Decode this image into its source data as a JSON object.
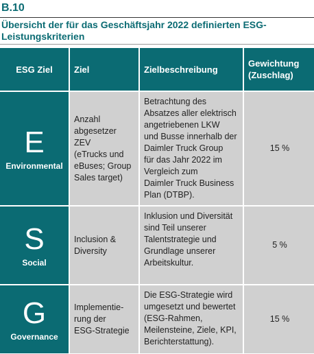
{
  "table_label": "B.10",
  "title": "Übersicht der für das Geschäftsjahr 2022 definierten ESG-Leistungskriterien",
  "headers": {
    "esg_goal": "ESG Ziel",
    "goal": "Ziel",
    "goal_description": "Zielbeschreibung",
    "weighting": "Gewichtung (Zuschlag)"
  },
  "rows": [
    {
      "letter": "E",
      "category": "Environmental",
      "goal": "Anzahl\nabgesetzer ZEV\n(eTrucks und\neBuses; Group\nSales target)",
      "description": "Betrachtung des\nAbsatzes aller elektrisch\nangetriebenen LKW\nund Busse innerhalb der\nDaimler Truck Group\nfür das Jahr 2022 im\nVergleich zum\nDaimler Truck Business\nPlan (DTBP).",
      "weight": "15 %"
    },
    {
      "letter": "S",
      "category": "Social",
      "goal": "Inclusion &\nDiversity",
      "description": "Inklusion und Diversität\nsind Teil unserer\nTalentstrategie und\nGrundlage unserer\nArbeitskultur.",
      "weight": "5 %"
    },
    {
      "letter": "G",
      "category": "Governance",
      "goal": "Implementie-\nrung der\nESG-Strategie",
      "description": "Die ESG-Strategie wird\numgesetzt und bewertet\n(ESG-Rahmen,\nMeilensteine, Ziele, KPI,\nBerichterstattung).",
      "weight": "15 %"
    }
  ],
  "colors": {
    "accent": "#0b6b73",
    "cell_bg": "#d0d0d0"
  }
}
